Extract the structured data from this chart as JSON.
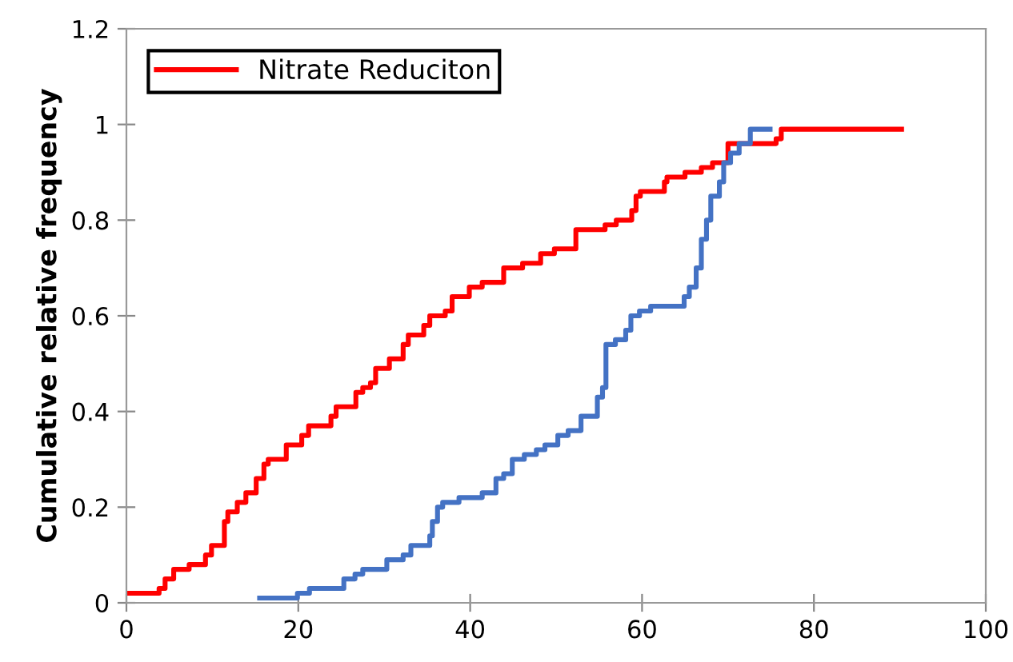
{
  "chart_data": {
    "type": "step",
    "ylabel": "Cumulative relative frequency",
    "xlim": [
      0,
      100
    ],
    "xticks": [
      0,
      20,
      40,
      60,
      80,
      100
    ],
    "ylim": [
      0,
      1.2
    ],
    "yticks": [
      0,
      0.2,
      0.4,
      0.6,
      0.8,
      1,
      1.2
    ],
    "grid": false,
    "legend": "top left",
    "series": [
      {
        "name": "Nitrate Reduciton",
        "color": "#ff0000",
        "x": [
          0,
          3.8,
          4.5,
          5.5,
          7.3,
          9.2,
          9.9,
          11.4,
          11.8,
          12.9,
          13.9,
          15.1,
          16,
          16.5,
          18.6,
          20.4,
          21.2,
          23.8,
          24.4,
          26.7,
          27.5,
          28.4,
          29,
          30.6,
          32.2,
          32.8,
          34.6,
          35.3,
          37.1,
          37.9,
          39.9,
          41.4,
          43.9,
          46.1,
          48.2,
          49.8,
          52.3,
          55.7,
          57,
          58.8,
          59.3,
          59.8,
          62.6,
          62.9,
          65,
          66.9,
          68.2,
          70,
          75.6,
          76.2,
          90.2
        ],
        "values": [
          0.02,
          0.03,
          0.05,
          0.07,
          0.08,
          0.1,
          0.12,
          0.17,
          0.19,
          0.21,
          0.23,
          0.26,
          0.29,
          0.3,
          0.33,
          0.35,
          0.37,
          0.39,
          0.41,
          0.44,
          0.45,
          0.46,
          0.49,
          0.51,
          0.54,
          0.56,
          0.58,
          0.6,
          0.61,
          0.64,
          0.66,
          0.67,
          0.7,
          0.71,
          0.73,
          0.74,
          0.78,
          0.79,
          0.8,
          0.82,
          0.85,
          0.86,
          0.88,
          0.89,
          0.9,
          0.91,
          0.92,
          0.96,
          0.97,
          0.99,
          0.99
        ]
      },
      {
        "color": "#4472c4",
        "x": [
          15.5,
          19.9,
          21.3,
          25.3,
          26.6,
          27.5,
          30.3,
          32.2,
          33.1,
          35.3,
          35.6,
          36.2,
          36.8,
          38.7,
          41.4,
          43,
          43.9,
          44.9,
          46.3,
          47.7,
          48.7,
          50.2,
          51.4,
          52.9,
          54.8,
          55.4,
          55.8,
          56.9,
          58.1,
          58.7,
          59.7,
          61,
          64.9,
          65.5,
          66.3,
          66.9,
          67.5,
          68,
          69,
          69.5,
          70.3,
          71.3,
          72.6,
          74.9
        ],
        "values": [
          0.01,
          0.02,
          0.03,
          0.05,
          0.06,
          0.07,
          0.09,
          0.1,
          0.12,
          0.14,
          0.17,
          0.2,
          0.21,
          0.22,
          0.23,
          0.26,
          0.27,
          0.3,
          0.31,
          0.32,
          0.33,
          0.35,
          0.36,
          0.39,
          0.43,
          0.45,
          0.54,
          0.55,
          0.57,
          0.6,
          0.61,
          0.62,
          0.64,
          0.66,
          0.7,
          0.76,
          0.8,
          0.85,
          0.88,
          0.92,
          0.94,
          0.96,
          0.99,
          0.99
        ]
      }
    ]
  }
}
